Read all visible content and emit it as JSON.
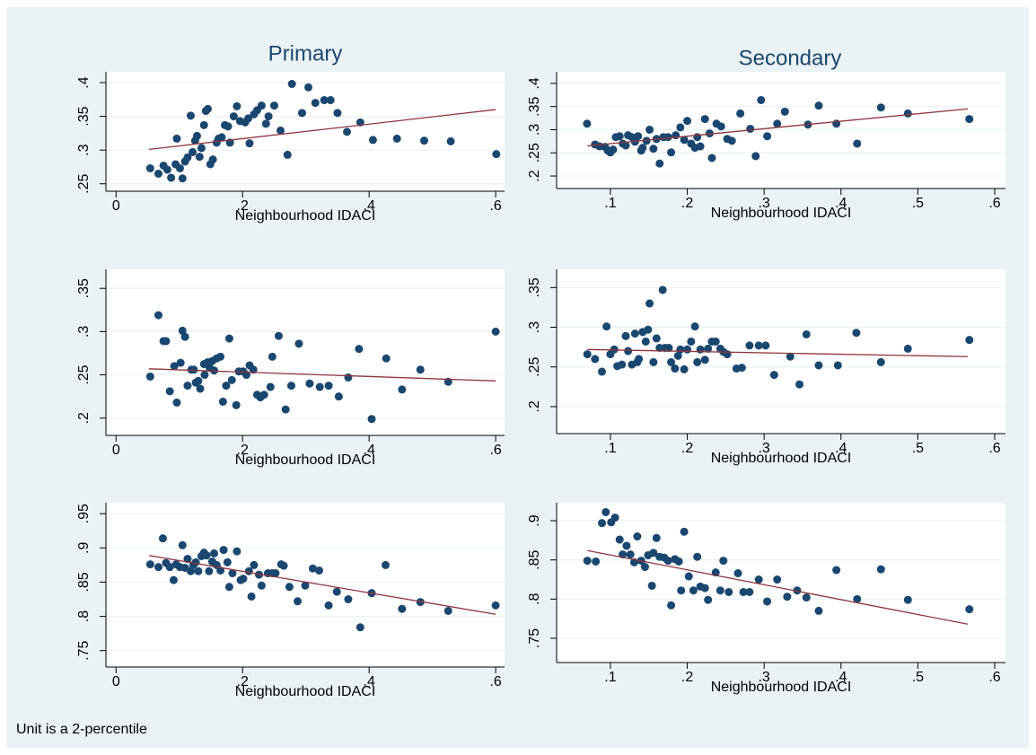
{
  "note": "Unit is a 2-percentile",
  "chart_data": [
    {
      "type": "scatter",
      "title": "Primary",
      "xlabel": "Neighbourhood IDACI",
      "color": "#1a476f",
      "grid": true,
      "xlim": [
        -0.016,
        0.614
      ],
      "ylim": [
        0.239,
        0.416
      ],
      "xticks": [
        0,
        {
          "value": 0.2,
          "label": ".2"
        },
        {
          "value": 0.4,
          "label": ".4"
        },
        {
          "value": 0.6,
          "label": ".6"
        }
      ],
      "yticks": [
        {
          "value": 0.25,
          "label": ".25"
        },
        {
          "value": 0.3,
          "label": ".3"
        },
        {
          "value": 0.35,
          "label": ".35"
        },
        {
          "value": 0.4,
          "label": ".4"
        }
      ],
      "x": [
        0.054,
        0.067,
        0.075,
        0.081,
        0.087,
        0.094,
        0.101,
        0.096,
        0.105,
        0.109,
        0.113,
        0.121,
        0.118,
        0.125,
        0.128,
        0.132,
        0.135,
        0.139,
        0.142,
        0.145,
        0.149,
        0.153,
        0.159,
        0.162,
        0.167,
        0.172,
        0.177,
        0.18,
        0.186,
        0.191,
        0.196,
        0.204,
        0.211,
        0.209,
        0.218,
        0.223,
        0.23,
        0.237,
        0.241,
        0.25,
        0.26,
        0.271,
        0.278,
        0.294,
        0.304,
        0.315,
        0.329,
        0.339,
        0.35,
        0.365,
        0.386,
        0.406,
        0.444,
        0.487,
        0.529,
        0.601
      ],
      "values": [
        0.273,
        0.265,
        0.277,
        0.271,
        0.259,
        0.279,
        0.273,
        0.317,
        0.258,
        0.283,
        0.289,
        0.297,
        0.351,
        0.314,
        0.321,
        0.29,
        0.303,
        0.337,
        0.358,
        0.361,
        0.279,
        0.286,
        0.311,
        0.317,
        0.319,
        0.337,
        0.335,
        0.311,
        0.35,
        0.365,
        0.343,
        0.341,
        0.31,
        0.347,
        0.353,
        0.359,
        0.366,
        0.339,
        0.35,
        0.366,
        0.329,
        0.293,
        0.398,
        0.355,
        0.393,
        0.37,
        0.374,
        0.374,
        0.355,
        0.327,
        0.341,
        0.315,
        0.317,
        0.314,
        0.313,
        0.294
      ],
      "fit": {
        "color": "#90353b",
        "x": [
          0.052,
          0.6
        ],
        "values": [
          0.301,
          0.36
        ]
      }
    },
    {
      "type": "scatter",
      "title": "Secondary",
      "xlabel": "Neighbourhood IDACI",
      "color": "#1a476f",
      "grid": true,
      "xlim": [
        0.03,
        0.614
      ],
      "ylim": [
        0.173,
        0.425
      ],
      "xticks": [
        {
          "value": 0.1,
          "label": ".1"
        },
        {
          "value": 0.2,
          "label": ".2"
        },
        {
          "value": 0.3,
          "label": ".3"
        },
        {
          "value": 0.4,
          "label": ".4"
        },
        {
          "value": 0.5,
          "label": ".5"
        },
        {
          "value": 0.6,
          "label": ".6"
        }
      ],
      "yticks": [
        {
          "value": 0.2,
          "label": ".2"
        },
        {
          "value": 0.25,
          "label": ".25"
        },
        {
          "value": 0.3,
          "label": ".3"
        },
        {
          "value": 0.35,
          "label": ".35"
        },
        {
          "value": 0.4,
          "label": ".4"
        }
      ],
      "x": [
        0.0696,
        0.08,
        0.086,
        0.093,
        0.0965,
        0.1,
        0.1035,
        0.107,
        0.112,
        0.116,
        0.12,
        0.123,
        0.128,
        0.132,
        0.136,
        0.14,
        0.142,
        0.147,
        0.151,
        0.156,
        0.16,
        0.164,
        0.169,
        0.175,
        0.179,
        0.185,
        0.191,
        0.196,
        0.2,
        0.205,
        0.21,
        0.213,
        0.217,
        0.223,
        0.229,
        0.232,
        0.238,
        0.244,
        0.252,
        0.258,
        0.269,
        0.282,
        0.289,
        0.296,
        0.304,
        0.317,
        0.327,
        0.357,
        0.371,
        0.394,
        0.421,
        0.452,
        0.487,
        0.567
      ],
      "values": [
        0.313,
        0.268,
        0.264,
        0.263,
        0.255,
        0.251,
        0.257,
        0.284,
        0.286,
        0.27,
        0.266,
        0.288,
        0.284,
        0.274,
        0.286,
        0.255,
        0.261,
        0.276,
        0.3,
        0.259,
        0.28,
        0.227,
        0.284,
        0.284,
        0.251,
        0.288,
        0.305,
        0.278,
        0.319,
        0.27,
        0.261,
        0.284,
        0.264,
        0.323,
        0.292,
        0.239,
        0.313,
        0.307,
        0.28,
        0.276,
        0.335,
        0.302,
        0.243,
        0.364,
        0.286,
        0.313,
        0.339,
        0.311,
        0.352,
        0.313,
        0.27,
        0.348,
        0.335,
        0.323
      ],
      "fit": {
        "color": "#90353b",
        "x": [
          0.07,
          0.565
        ],
        "values": [
          0.265,
          0.345
        ]
      }
    },
    {
      "type": "scatter",
      "xlabel": "Neighbourhood IDACI",
      "color": "#1a476f",
      "grid": true,
      "xlim": [
        -0.016,
        0.614
      ],
      "ylim": [
        0.18,
        0.372
      ],
      "xticks": [
        0,
        {
          "value": 0.2,
          "label": ".2"
        },
        {
          "value": 0.4,
          "label": ".4"
        },
        {
          "value": 0.6,
          "label": ".6"
        }
      ],
      "yticks": [
        {
          "value": 0.2,
          "label": ".2"
        },
        {
          "value": 0.25,
          "label": ".25"
        },
        {
          "value": 0.3,
          "label": ".3"
        },
        {
          "value": 0.35,
          "label": ".35"
        }
      ],
      "x": [
        0.054,
        0.067,
        0.075,
        0.079,
        0.085,
        0.092,
        0.096,
        0.102,
        0.105,
        0.109,
        0.113,
        0.119,
        0.123,
        0.126,
        0.13,
        0.133,
        0.139,
        0.14,
        0.145,
        0.148,
        0.152,
        0.155,
        0.159,
        0.165,
        0.169,
        0.174,
        0.179,
        0.183,
        0.19,
        0.194,
        0.201,
        0.206,
        0.211,
        0.217,
        0.223,
        0.228,
        0.234,
        0.244,
        0.247,
        0.257,
        0.268,
        0.277,
        0.289,
        0.306,
        0.322,
        0.336,
        0.352,
        0.367,
        0.384,
        0.404,
        0.427,
        0.452,
        0.481,
        0.525,
        0.6
      ],
      "values": [
        0.248,
        0.319,
        0.289,
        0.289,
        0.231,
        0.26,
        0.218,
        0.264,
        0.301,
        0.294,
        0.2375,
        0.256,
        0.256,
        0.241,
        0.243,
        0.234,
        0.2625,
        0.25,
        0.2646,
        0.258,
        0.266,
        0.255,
        0.269,
        0.271,
        0.219,
        0.2375,
        0.292,
        0.244,
        0.215,
        0.254,
        0.254,
        0.25,
        0.261,
        0.256,
        0.227,
        0.224,
        0.227,
        0.236,
        0.271,
        0.295,
        0.21,
        0.2375,
        0.286,
        0.24,
        0.236,
        0.2375,
        0.225,
        0.247,
        0.28,
        0.199,
        0.269,
        0.233,
        0.256,
        0.242,
        0.3
      ],
      "fit": {
        "color": "#90353b",
        "x": [
          0.052,
          0.6
        ],
        "values": [
          0.257,
          0.243
        ]
      }
    },
    {
      "type": "scatter",
      "xlabel": "Neighbourhood IDACI",
      "color": "#1a476f",
      "grid": true,
      "xlim": [
        0.03,
        0.614
      ],
      "ylim": [
        0.166,
        0.373
      ],
      "xticks": [
        {
          "value": 0.1,
          "label": ".1"
        },
        {
          "value": 0.2,
          "label": ".2"
        },
        {
          "value": 0.3,
          "label": ".3"
        },
        {
          "value": 0.4,
          "label": ".4"
        },
        {
          "value": 0.5,
          "label": ".5"
        },
        {
          "value": 0.6,
          "label": ".6"
        }
      ],
      "yticks": [
        {
          "value": 0.2,
          "label": ".2"
        },
        {
          "value": 0.25,
          "label": ".25"
        },
        {
          "value": 0.3,
          "label": ".3"
        },
        {
          "value": 0.35,
          "label": ".35"
        }
      ],
      "x": [
        0.07,
        0.08,
        0.089,
        0.095,
        0.1,
        0.105,
        0.109,
        0.115,
        0.12,
        0.123,
        0.128,
        0.132,
        0.135,
        0.137,
        0.142,
        0.146,
        0.149,
        0.151,
        0.156,
        0.16,
        0.164,
        0.168,
        0.171,
        0.176,
        0.179,
        0.184,
        0.188,
        0.191,
        0.196,
        0.2,
        0.205,
        0.21,
        0.213,
        0.217,
        0.223,
        0.227,
        0.232,
        0.237,
        0.243,
        0.247,
        0.252,
        0.264,
        0.271,
        0.281,
        0.293,
        0.302,
        0.313,
        0.334,
        0.346,
        0.355,
        0.371,
        0.396,
        0.42,
        0.452,
        0.487,
        0.567
      ],
      "values": [
        0.266,
        0.26,
        0.244,
        0.301,
        0.266,
        0.272,
        0.251,
        0.253,
        0.289,
        0.27,
        0.253,
        0.292,
        0.256,
        0.26,
        0.294,
        0.282,
        0.297,
        0.33,
        0.256,
        0.286,
        0.274,
        0.347,
        0.274,
        0.274,
        0.256,
        0.248,
        0.264,
        0.272,
        0.247,
        0.272,
        0.282,
        0.301,
        0.256,
        0.272,
        0.259,
        0.273,
        0.282,
        0.282,
        0.273,
        0.269,
        0.266,
        0.248,
        0.249,
        0.277,
        0.277,
        0.277,
        0.24,
        0.263,
        0.228,
        0.291,
        0.252,
        0.252,
        0.293,
        0.256,
        0.273,
        0.284
      ],
      "fit": {
        "color": "#90353b",
        "x": [
          0.07,
          0.565
        ],
        "values": [
          0.272,
          0.263
        ]
      }
    },
    {
      "type": "scatter",
      "xlabel": "Neighbourhood IDACI",
      "color": "#1a476f",
      "grid": true,
      "xlim": [
        -0.016,
        0.614
      ],
      "ylim": [
        0.726,
        0.966
      ],
      "xticks": [
        0,
        {
          "value": 0.2,
          "label": ".2"
        },
        {
          "value": 0.4,
          "label": ".4"
        },
        {
          "value": 0.6,
          "label": ".6"
        }
      ],
      "yticks": [
        {
          "value": 0.75,
          "label": ".75"
        },
        {
          "value": 0.8,
          "label": ".8"
        },
        {
          "value": 0.85,
          "label": ".85"
        },
        {
          "value": 0.9,
          "label": ".9"
        },
        {
          "value": 0.95,
          "label": ".95"
        }
      ],
      "x": [
        0.054,
        0.067,
        0.074,
        0.079,
        0.085,
        0.091,
        0.095,
        0.101,
        0.105,
        0.109,
        0.113,
        0.118,
        0.122,
        0.126,
        0.13,
        0.135,
        0.139,
        0.143,
        0.147,
        0.152,
        0.155,
        0.159,
        0.165,
        0.17,
        0.176,
        0.179,
        0.184,
        0.191,
        0.197,
        0.201,
        0.21,
        0.214,
        0.218,
        0.226,
        0.23,
        0.24,
        0.247,
        0.252,
        0.261,
        0.265,
        0.274,
        0.287,
        0.299,
        0.311,
        0.321,
        0.336,
        0.349,
        0.367,
        0.386,
        0.404,
        0.426,
        0.452,
        0.481,
        0.525,
        0.6
      ],
      "values": [
        0.876,
        0.872,
        0.914,
        0.878,
        0.872,
        0.853,
        0.876,
        0.872,
        0.904,
        0.871,
        0.884,
        0.866,
        0.875,
        0.879,
        0.866,
        0.888,
        0.893,
        0.889,
        0.866,
        0.88,
        0.892,
        0.875,
        0.867,
        0.897,
        0.879,
        0.843,
        0.863,
        0.895,
        0.853,
        0.855,
        0.866,
        0.829,
        0.875,
        0.861,
        0.845,
        0.863,
        0.863,
        0.863,
        0.876,
        0.874,
        0.843,
        0.822,
        0.845,
        0.87,
        0.867,
        0.816,
        0.836,
        0.825,
        0.784,
        0.834,
        0.875,
        0.811,
        0.821,
        0.808,
        0.816
      ],
      "fit": {
        "color": "#90353b",
        "x": [
          0.052,
          0.6
        ],
        "values": [
          0.889,
          0.803
        ]
      }
    },
    {
      "type": "scatter",
      "xlabel": "Neighbourhood IDACI",
      "color": "#1a476f",
      "grid": true,
      "xlim": [
        0.03,
        0.614
      ],
      "ylim": [
        0.719,
        0.923
      ],
      "xticks": [
        {
          "value": 0.1,
          "label": ".1"
        },
        {
          "value": 0.2,
          "label": ".2"
        },
        {
          "value": 0.3,
          "label": ".3"
        },
        {
          "value": 0.4,
          "label": ".4"
        },
        {
          "value": 0.5,
          "label": ".5"
        },
        {
          "value": 0.6,
          "label": ".6"
        }
      ],
      "yticks": [
        {
          "value": 0.75,
          "label": ".75"
        },
        {
          "value": 0.8,
          "label": ".8"
        },
        {
          "value": 0.85,
          "label": ".85"
        },
        {
          "value": 0.9,
          "label": ".9"
        }
      ],
      "x": [
        0.07,
        0.081,
        0.089,
        0.094,
        0.101,
        0.106,
        0.112,
        0.116,
        0.121,
        0.126,
        0.131,
        0.135,
        0.14,
        0.145,
        0.149,
        0.154,
        0.156,
        0.16,
        0.164,
        0.17,
        0.175,
        0.179,
        0.184,
        0.189,
        0.192,
        0.196,
        0.202,
        0.208,
        0.213,
        0.217,
        0.223,
        0.227,
        0.237,
        0.243,
        0.247,
        0.254,
        0.266,
        0.273,
        0.281,
        0.293,
        0.304,
        0.317,
        0.33,
        0.343,
        0.355,
        0.371,
        0.394,
        0.421,
        0.452,
        0.487,
        0.567
      ],
      "values": [
        0.849,
        0.848,
        0.897,
        0.911,
        0.898,
        0.904,
        0.876,
        0.857,
        0.868,
        0.857,
        0.847,
        0.88,
        0.849,
        0.841,
        0.856,
        0.817,
        0.859,
        0.878,
        0.854,
        0.853,
        0.849,
        0.792,
        0.851,
        0.848,
        0.811,
        0.886,
        0.829,
        0.811,
        0.854,
        0.816,
        0.814,
        0.799,
        0.834,
        0.811,
        0.849,
        0.809,
        0.833,
        0.809,
        0.809,
        0.825,
        0.797,
        0.825,
        0.803,
        0.811,
        0.802,
        0.785,
        0.837,
        0.8,
        0.838,
        0.799,
        0.787
      ],
      "fit": {
        "color": "#90353b",
        "x": [
          0.07,
          0.565
        ],
        "values": [
          0.862,
          0.768
        ]
      }
    }
  ]
}
